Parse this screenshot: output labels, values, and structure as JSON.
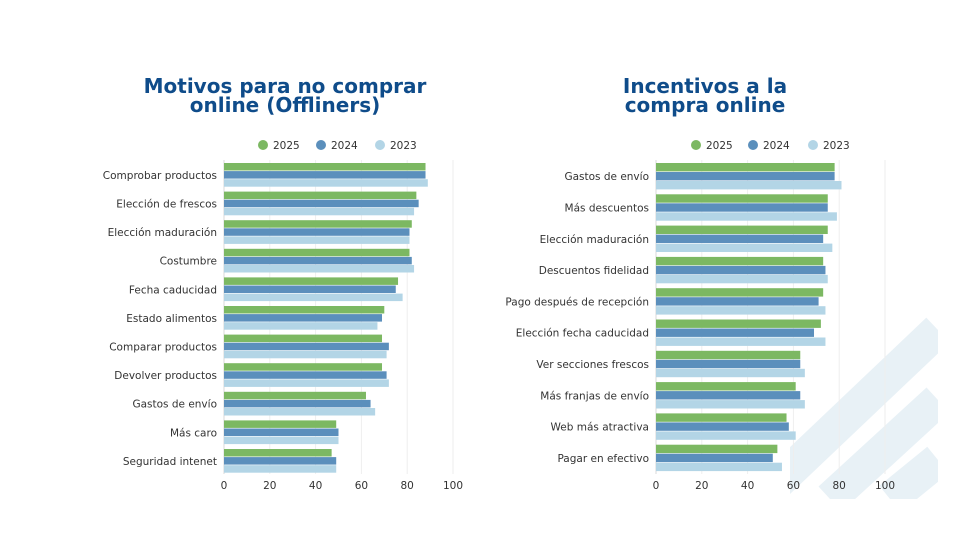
{
  "colors": {
    "c2025": "#7cb862",
    "c2024": "#5b8fbc",
    "c2023": "#b3d5e6",
    "title": "#0f4c8a",
    "decor": "#e8f1f6"
  },
  "chart_data": [
    {
      "type": "bar",
      "orientation": "horizontal",
      "title": [
        "Motivos para no comprar",
        "online (Offliners)"
      ],
      "legend": [
        "2025",
        "2024",
        "2023"
      ],
      "categories": [
        "Comprobar productos",
        "Elección de frescos",
        "Elección maduración",
        "Costumbre",
        "Fecha caducidad",
        "Estado alimentos",
        "Comparar productos",
        "Devolver productos",
        "Gastos de envío",
        "Más caro",
        "Seguridad intenet"
      ],
      "series": [
        {
          "name": "2025",
          "values": [
            88,
            84,
            82,
            81,
            76,
            70,
            69,
            69,
            62,
            49,
            47
          ]
        },
        {
          "name": "2024",
          "values": [
            88,
            85,
            81,
            82,
            75,
            69,
            72,
            71,
            64,
            50,
            49
          ]
        },
        {
          "name": "2023",
          "values": [
            89,
            83,
            81,
            83,
            78,
            67,
            71,
            72,
            66,
            50,
            49
          ]
        }
      ],
      "xlim": [
        0,
        100
      ],
      "xticks": [
        "0",
        "20",
        "40",
        "60",
        "80",
        "100"
      ]
    },
    {
      "type": "bar",
      "orientation": "horizontal",
      "title": [
        "Incentivos a la",
        "compra online"
      ],
      "legend": [
        "2025",
        "2024",
        "2023"
      ],
      "categories": [
        "Gastos de envío",
        "Más descuentos",
        "Elección maduración",
        "Descuentos fidelidad",
        "Pago después de recepción",
        "Elección fecha caducidad",
        "Ver secciones frescos",
        "Más franjas de envío",
        "Web más atractiva",
        "Pagar en efectivo"
      ],
      "series": [
        {
          "name": "2025",
          "values": [
            78,
            75,
            75,
            73,
            73,
            72,
            63,
            61,
            57,
            53
          ]
        },
        {
          "name": "2024",
          "values": [
            78,
            75,
            73,
            74,
            71,
            69,
            63,
            63,
            58,
            51
          ]
        },
        {
          "name": "2023",
          "values": [
            81,
            79,
            77,
            75,
            74,
            74,
            65,
            65,
            61,
            55
          ]
        }
      ],
      "xlim": [
        0,
        100
      ],
      "xticks": [
        "0",
        "20",
        "40",
        "60",
        "80",
        "100"
      ]
    }
  ]
}
